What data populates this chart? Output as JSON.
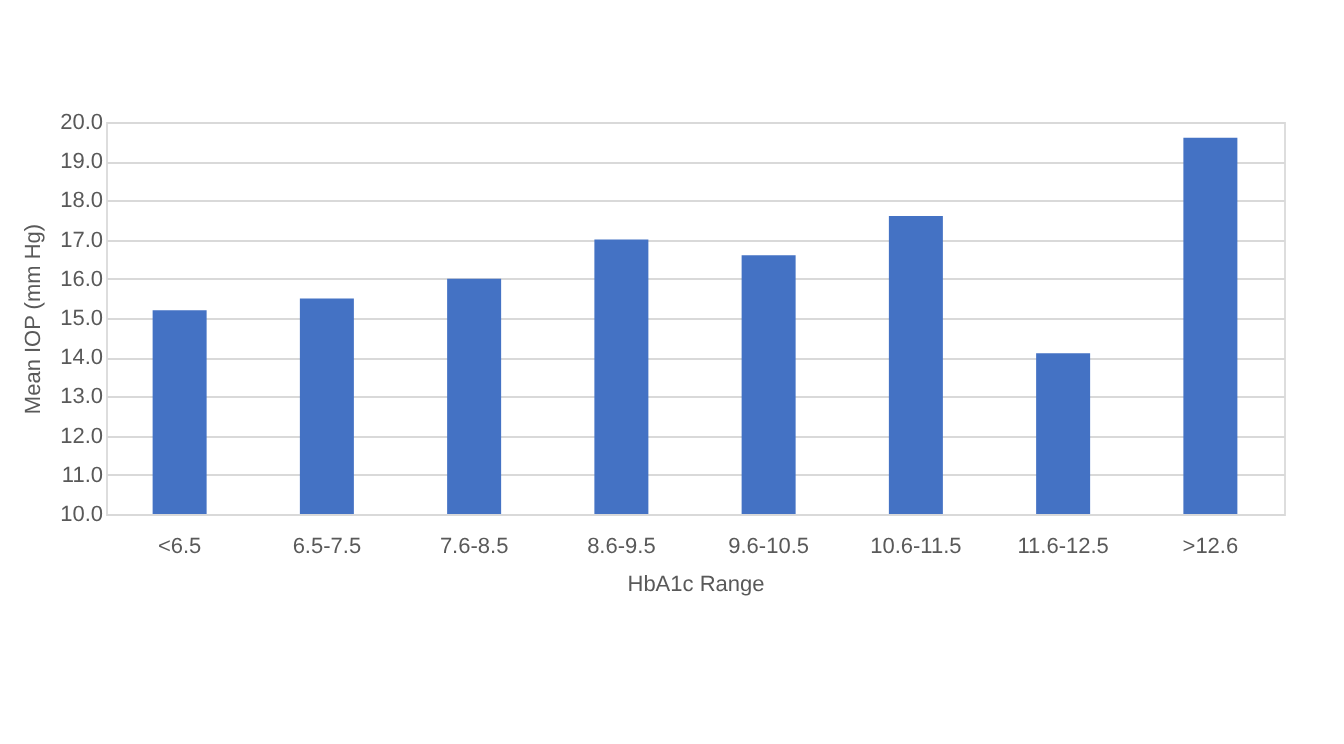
{
  "chart_data": {
    "type": "bar",
    "xlabel": "HbA1c Range",
    "ylabel": "Mean IOP (mm Hg)",
    "categories": [
      "<6.5",
      "6.5-7.5",
      "7.6-8.5",
      "8.6-9.5",
      "9.6-10.5",
      "10.6-11.5",
      "11.6-12.5",
      ">12.6"
    ],
    "values": [
      15.2,
      15.5,
      16.0,
      17.0,
      16.6,
      17.6,
      14.1,
      19.6
    ],
    "color": "#4472c4",
    "ylim": [
      10,
      20
    ],
    "yticks": [
      {
        "value": 10,
        "label": "10.0"
      },
      {
        "value": 11,
        "label": "11.0"
      },
      {
        "value": 12,
        "label": "12.0"
      },
      {
        "value": 13,
        "label": "13.0"
      },
      {
        "value": 14,
        "label": "14.0"
      },
      {
        "value": 15,
        "label": "15.0"
      },
      {
        "value": 16,
        "label": "16.0"
      },
      {
        "value": 17,
        "label": "17.0"
      },
      {
        "value": 18,
        "label": "18.0"
      },
      {
        "value": 19,
        "label": "19.0"
      },
      {
        "value": 20,
        "label": "20.0"
      }
    ],
    "grid": "y"
  }
}
